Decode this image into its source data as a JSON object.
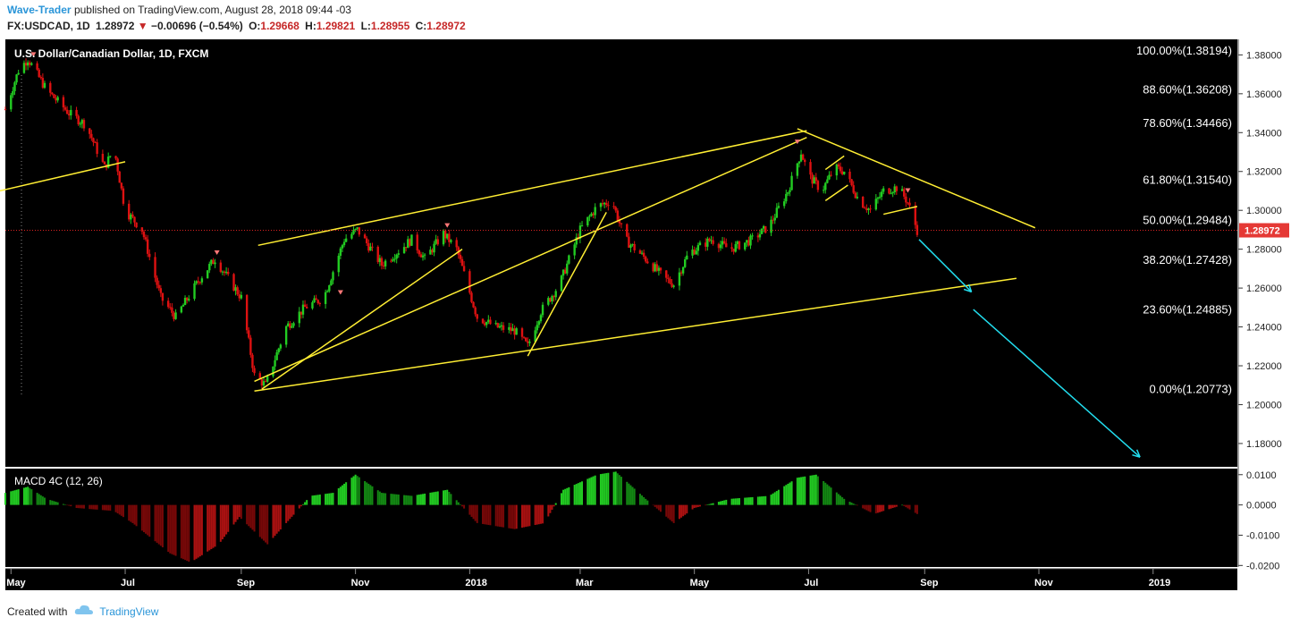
{
  "header": {
    "author": "Wave-Trader",
    "published_text": "published on TradingView.com, August 28, 2018 09:44 -03"
  },
  "quote": {
    "symbol": "FX:USDCAD, 1D",
    "last": "1.28972",
    "arrow": "▼",
    "change": "−0.00696 (−0.54%)",
    "o_label": "O:",
    "o": "1.29668",
    "h_label": "H:",
    "h": "1.29821",
    "l_label": "L:",
    "l": "1.28955",
    "c_label": "C:",
    "c": "1.28972"
  },
  "footer": {
    "created_with": "Created with",
    "brand": "TradingView"
  },
  "colors": {
    "up": "#22cc22",
    "down": "#dd1111",
    "trendline": "#ffee33",
    "projection": "#22ddee",
    "price_line": "#dd2222",
    "macd_up": "#22aa22",
    "macd_down": "#aa1111"
  },
  "chart_data": {
    "type": "candlestick",
    "title": "U.S. Dollar/Canadian Dollar, 1D, FXCM",
    "price_axis": {
      "range": [
        1.168,
        1.388
      ],
      "ticks": [
        "1.38000",
        "1.36000",
        "1.34000",
        "1.32000",
        "1.30000",
        "1.28000",
        "1.26000",
        "1.24000",
        "1.22000",
        "1.20000",
        "1.18000"
      ],
      "tick_values": [
        1.38,
        1.36,
        1.34,
        1.32,
        1.3,
        1.28,
        1.26,
        1.24,
        1.22,
        1.2,
        1.18
      ],
      "last_price_label": "1.28972",
      "last_price": 1.28972
    },
    "time_axis": {
      "range": [
        "2017-04-28",
        "2019-02-15"
      ],
      "labels": [
        {
          "text": "May",
          "date": "2017-05-01"
        },
        {
          "text": "Jul",
          "date": "2017-07-01"
        },
        {
          "text": "Sep",
          "date": "2017-09-01"
        },
        {
          "text": "Nov",
          "date": "2017-11-01"
        },
        {
          "text": "2018",
          "date": "2018-01-01"
        },
        {
          "text": "Mar",
          "date": "2018-03-01"
        },
        {
          "text": "May",
          "date": "2018-05-01"
        },
        {
          "text": "Jul",
          "date": "2018-07-01"
        },
        {
          "text": "Sep",
          "date": "2018-09-01"
        },
        {
          "text": "Nov",
          "date": "2018-11-01"
        },
        {
          "text": "2019",
          "date": "2019-01-01"
        }
      ]
    },
    "price_path": [
      [
        "2017-04-28",
        1.352
      ],
      [
        "2017-05-05",
        1.372
      ],
      [
        "2017-05-10",
        1.378
      ],
      [
        "2017-05-20",
        1.362
      ],
      [
        "2017-06-01",
        1.35
      ],
      [
        "2017-06-10",
        1.344
      ],
      [
        "2017-06-20",
        1.322
      ],
      [
        "2017-06-25",
        1.332
      ],
      [
        "2017-07-01",
        1.3
      ],
      [
        "2017-07-10",
        1.29
      ],
      [
        "2017-07-20",
        1.255
      ],
      [
        "2017-07-28",
        1.245
      ],
      [
        "2017-08-10",
        1.265
      ],
      [
        "2017-08-18",
        1.275
      ],
      [
        "2017-09-01",
        1.255
      ],
      [
        "2017-09-08",
        1.215
      ],
      [
        "2017-09-14",
        1.21
      ],
      [
        "2017-09-25",
        1.24
      ],
      [
        "2017-10-05",
        1.25
      ],
      [
        "2017-10-15",
        1.255
      ],
      [
        "2017-10-26",
        1.285
      ],
      [
        "2017-11-02",
        1.29
      ],
      [
        "2017-11-15",
        1.272
      ],
      [
        "2017-11-25",
        1.28
      ],
      [
        "2017-12-01",
        1.285
      ],
      [
        "2017-12-08",
        1.275
      ],
      [
        "2017-12-18",
        1.288
      ],
      [
        "2017-12-25",
        1.28
      ],
      [
        "2018-01-05",
        1.245
      ],
      [
        "2018-01-15",
        1.24
      ],
      [
        "2018-01-25",
        1.238
      ],
      [
        "2018-02-01",
        1.23
      ],
      [
        "2018-02-08",
        1.248
      ],
      [
        "2018-02-18",
        1.262
      ],
      [
        "2018-03-01",
        1.29
      ],
      [
        "2018-03-10",
        1.302
      ],
      [
        "2018-03-18",
        1.305
      ],
      [
        "2018-03-25",
        1.285
      ],
      [
        "2018-04-05",
        1.275
      ],
      [
        "2018-04-15",
        1.265
      ],
      [
        "2018-04-20",
        1.262
      ],
      [
        "2018-04-28",
        1.278
      ],
      [
        "2018-05-10",
        1.285
      ],
      [
        "2018-05-20",
        1.28
      ],
      [
        "2018-06-01",
        1.285
      ],
      [
        "2018-06-10",
        1.292
      ],
      [
        "2018-06-20",
        1.31
      ],
      [
        "2018-06-27",
        1.33
      ],
      [
        "2018-07-01",
        1.318
      ],
      [
        "2018-07-08",
        1.31
      ],
      [
        "2018-07-15",
        1.322
      ],
      [
        "2018-07-20",
        1.32
      ],
      [
        "2018-07-28",
        1.305
      ],
      [
        "2018-08-03",
        1.3
      ],
      [
        "2018-08-10",
        1.31
      ],
      [
        "2018-08-18",
        1.312
      ],
      [
        "2018-08-23",
        1.304
      ],
      [
        "2018-08-28",
        1.28972
      ]
    ],
    "fibonacci_levels": [
      {
        "label": "100.00%(1.38194)",
        "value": 1.38194
      },
      {
        "label": "88.60%(1.36208)",
        "value": 1.36208
      },
      {
        "label": "78.60%(1.34466)",
        "value": 1.34466
      },
      {
        "label": "61.80%(1.31540)",
        "value": 1.3154
      },
      {
        "label": "50.00%(1.29484)",
        "value": 1.29484
      },
      {
        "label": "38.20%(1.27428)",
        "value": 1.27428
      },
      {
        "label": "23.60%(1.24885)",
        "value": 1.24885
      },
      {
        "label": "0.00%(1.20773)",
        "value": 1.20773
      }
    ],
    "trendlines": [
      {
        "from": [
          "2017-04-25",
          1.31
        ],
        "to": [
          "2017-07-01",
          1.325
        ]
      },
      {
        "from": [
          "2017-09-10",
          1.282
        ],
        "to": [
          "2018-06-30",
          1.341
        ]
      },
      {
        "from": [
          "2017-09-08",
          1.207
        ],
        "to": [
          "2018-10-20",
          1.265
        ]
      },
      {
        "from": [
          "2017-09-12",
          1.208
        ],
        "to": [
          "2017-12-28",
          1.28
        ]
      },
      {
        "from": [
          "2018-02-01",
          1.225
        ],
        "to": [
          "2018-03-15",
          1.299
        ]
      },
      {
        "from": [
          "2018-06-25",
          1.342
        ],
        "to": [
          "2018-10-30",
          1.291
        ]
      },
      {
        "from": [
          "2018-07-10",
          1.321
        ],
        "to": [
          "2018-07-20",
          1.328
        ]
      },
      {
        "from": [
          "2018-07-10",
          1.305
        ],
        "to": [
          "2018-07-22",
          1.313
        ]
      },
      {
        "from": [
          "2018-08-10",
          1.298
        ],
        "to": [
          "2018-08-28",
          1.302
        ]
      },
      {
        "from": [
          "2017-09-08",
          1.212
        ],
        "to": [
          "2018-06-30",
          1.3375
        ]
      }
    ],
    "projections": [
      {
        "from": [
          "2018-08-29",
          1.285
        ],
        "to": [
          "2018-09-26",
          1.258
        ]
      },
      {
        "from": [
          "2018-09-27",
          1.249
        ],
        "to": [
          "2018-12-25",
          1.173
        ]
      }
    ],
    "markers": [
      {
        "date": "2017-05-13",
        "price": 1.38
      },
      {
        "date": "2017-08-19",
        "price": 1.278
      },
      {
        "date": "2017-10-24",
        "price": 1.2575
      },
      {
        "date": "2017-12-20",
        "price": 1.292
      },
      {
        "date": "2018-06-25",
        "price": 1.335
      },
      {
        "date": "2018-08-23",
        "price": 1.31
      }
    ],
    "macd": {
      "label": "MACD 4C (12, 26)",
      "range": [
        -0.0205,
        0.012
      ],
      "ticks": [
        "0.0100",
        "0.0000",
        "-0.0100",
        "-0.0200"
      ],
      "tick_values": [
        0.01,
        0.0,
        -0.01,
        -0.02
      ],
      "path": [
        [
          "2017-04-28",
          0.004
        ],
        [
          "2017-05-10",
          0.006
        ],
        [
          "2017-05-20",
          0.002
        ],
        [
          "2017-06-05",
          -0.001
        ],
        [
          "2017-06-25",
          -0.002
        ],
        [
          "2017-07-05",
          -0.006
        ],
        [
          "2017-07-25",
          -0.016
        ],
        [
          "2017-08-05",
          -0.019
        ],
        [
          "2017-08-20",
          -0.013
        ],
        [
          "2017-08-31",
          -0.004
        ],
        [
          "2017-09-15",
          -0.013
        ],
        [
          "2017-09-25",
          -0.006
        ],
        [
          "2017-10-08",
          0.003
        ],
        [
          "2017-10-20",
          0.004
        ],
        [
          "2017-11-01",
          0.01
        ],
        [
          "2017-11-15",
          0.004
        ],
        [
          "2017-12-01",
          0.003
        ],
        [
          "2017-12-20",
          0.005
        ],
        [
          "2018-01-05",
          -0.006
        ],
        [
          "2018-01-25",
          -0.008
        ],
        [
          "2018-02-10",
          -0.006
        ],
        [
          "2018-02-20",
          0.005
        ],
        [
          "2018-03-10",
          0.01
        ],
        [
          "2018-03-20",
          0.011
        ],
        [
          "2018-04-05",
          0.002
        ],
        [
          "2018-04-20",
          -0.006
        ],
        [
          "2018-05-01",
          -0.001
        ],
        [
          "2018-05-20",
          0.002
        ],
        [
          "2018-06-10",
          0.003
        ],
        [
          "2018-06-25",
          0.009
        ],
        [
          "2018-07-05",
          0.01
        ],
        [
          "2018-07-20",
          0.002
        ],
        [
          "2018-08-05",
          -0.003
        ],
        [
          "2018-08-20",
          0.0
        ],
        [
          "2018-08-28",
          -0.003
        ]
      ]
    }
  }
}
